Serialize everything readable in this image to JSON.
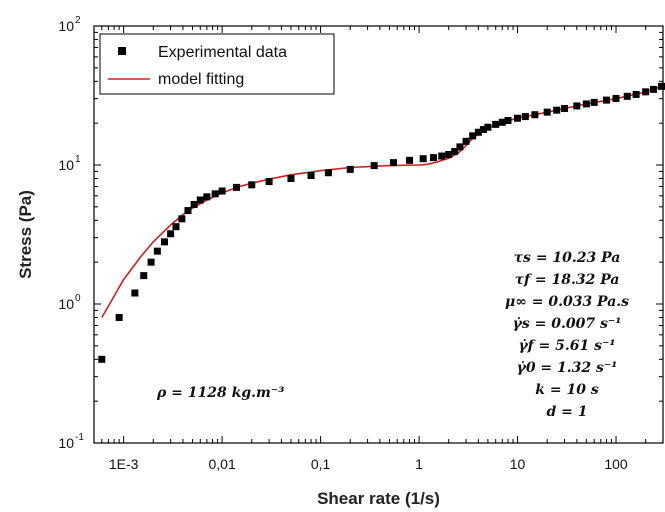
{
  "chart_data": {
    "type": "scatter",
    "xscale": "log",
    "yscale": "log",
    "xlim": [
      0.0005,
      300
    ],
    "ylim": [
      0.1,
      100
    ],
    "xlabel": "Shear rate (1/s)",
    "ylabel": "Stress (Pa)",
    "x_ticks": [
      {
        "value": 0.001,
        "label": "1E-3"
      },
      {
        "value": 0.01,
        "label": "0,01"
      },
      {
        "value": 0.1,
        "label": "0,1"
      },
      {
        "value": 1,
        "label": "1"
      },
      {
        "value": 10,
        "label": "10"
      },
      {
        "value": 100,
        "label": "100"
      }
    ],
    "y_ticks": [
      {
        "value": 0.1,
        "base": "10",
        "exp": "-1"
      },
      {
        "value": 1,
        "base": "10",
        "exp": "0"
      },
      {
        "value": 10,
        "base": "10",
        "exp": "1"
      },
      {
        "value": 100,
        "base": "10",
        "exp": "2"
      }
    ],
    "legend": {
      "position": "top-left",
      "entries": [
        "Experimental data",
        "model fitting"
      ]
    },
    "grid": false,
    "series": [
      {
        "name": "Experimental data",
        "kind": "scatter",
        "color": "#000000",
        "marker": "square",
        "points": [
          [
            0.0006,
            0.4
          ],
          [
            0.0009,
            0.8
          ],
          [
            0.0013,
            1.2
          ],
          [
            0.0016,
            1.6
          ],
          [
            0.0019,
            2.0
          ],
          [
            0.0022,
            2.4
          ],
          [
            0.0026,
            2.8
          ],
          [
            0.003,
            3.2
          ],
          [
            0.0034,
            3.6
          ],
          [
            0.0039,
            4.1
          ],
          [
            0.0045,
            4.7
          ],
          [
            0.0052,
            5.2
          ],
          [
            0.006,
            5.6
          ],
          [
            0.007,
            5.9
          ],
          [
            0.0085,
            6.2
          ],
          [
            0.01,
            6.5
          ],
          [
            0.014,
            6.9
          ],
          [
            0.02,
            7.2
          ],
          [
            0.03,
            7.6
          ],
          [
            0.05,
            8.0
          ],
          [
            0.08,
            8.4
          ],
          [
            0.12,
            8.8
          ],
          [
            0.2,
            9.3
          ],
          [
            0.35,
            9.9
          ],
          [
            0.55,
            10.4
          ],
          [
            0.8,
            10.8
          ],
          [
            1.1,
            11.1
          ],
          [
            1.4,
            11.3
          ],
          [
            1.7,
            11.6
          ],
          [
            2.0,
            11.9
          ],
          [
            2.3,
            12.5
          ],
          [
            2.6,
            13.5
          ],
          [
            3.0,
            14.8
          ],
          [
            3.5,
            16.2
          ],
          [
            4.0,
            17.2
          ],
          [
            4.5,
            18.0
          ],
          [
            5.0,
            18.7
          ],
          [
            6.0,
            19.6
          ],
          [
            7.0,
            20.3
          ],
          [
            8.0,
            20.9
          ],
          [
            10,
            21.7
          ],
          [
            12,
            22.3
          ],
          [
            15,
            23.0
          ],
          [
            20,
            24.0
          ],
          [
            25,
            24.8
          ],
          [
            30,
            25.5
          ],
          [
            40,
            26.6
          ],
          [
            50,
            27.5
          ],
          [
            60,
            28.2
          ],
          [
            80,
            29.3
          ],
          [
            100,
            30.1
          ],
          [
            130,
            31.2
          ],
          [
            160,
            32.2
          ],
          [
            200,
            33.6
          ],
          [
            240,
            35.0
          ],
          [
            290,
            36.8
          ]
        ]
      },
      {
        "name": "model fitting",
        "kind": "line",
        "color": "#d02020",
        "points": [
          [
            0.0006,
            0.8
          ],
          [
            0.00075,
            1.05
          ],
          [
            0.001,
            1.5
          ],
          [
            0.0015,
            2.2
          ],
          [
            0.002,
            2.8
          ],
          [
            0.003,
            3.7
          ],
          [
            0.004,
            4.4
          ],
          [
            0.005,
            4.9
          ],
          [
            0.007,
            5.6
          ],
          [
            0.01,
            6.3
          ],
          [
            0.015,
            7.0
          ],
          [
            0.02,
            7.4
          ],
          [
            0.03,
            7.9
          ],
          [
            0.05,
            8.5
          ],
          [
            0.1,
            9.1
          ],
          [
            0.2,
            9.6
          ],
          [
            0.5,
            9.9
          ],
          [
            1.0,
            10.0
          ],
          [
            1.2,
            10.1
          ],
          [
            1.5,
            10.5
          ],
          [
            2.0,
            11.2
          ],
          [
            2.5,
            12.2
          ],
          [
            3.0,
            13.8
          ],
          [
            3.5,
            15.5
          ],
          [
            4.0,
            16.8
          ],
          [
            5.0,
            18.4
          ],
          [
            7.0,
            20.2
          ],
          [
            10,
            21.8
          ],
          [
            20,
            24.0
          ],
          [
            50,
            27.5
          ],
          [
            100,
            30.0
          ],
          [
            200,
            33.5
          ],
          [
            300,
            37.0
          ]
        ]
      }
    ],
    "annotations": {
      "density": "ρ = 1128 kg.m⁻³",
      "parameters": [
        "τs = 10.23 Pa",
        "τf = 18.32 Pa",
        "μ∞ = 0.033 Pa.s",
        "γ̇s = 0.007 s⁻¹",
        "γ̇f = 5.61 s⁻¹",
        "γ̇0 = 1.32 s⁻¹",
        "k = 10 s",
        "d = 1"
      ]
    }
  }
}
